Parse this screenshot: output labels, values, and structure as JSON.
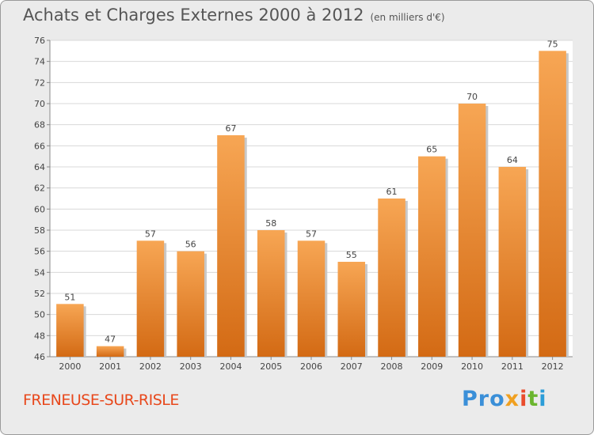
{
  "chart_data": {
    "type": "bar",
    "title": "Achats et Charges Externes 2000 à 2012",
    "subtitle": "(en milliers d'€)",
    "categories": [
      "2000",
      "2001",
      "2002",
      "2003",
      "2004",
      "2005",
      "2006",
      "2007",
      "2008",
      "2009",
      "2010",
      "2011",
      "2012"
    ],
    "values": [
      51,
      47,
      57,
      56,
      67,
      58,
      57,
      55,
      61,
      65,
      70,
      64,
      75
    ],
    "ylim": [
      46,
      76
    ],
    "yticks": [
      46,
      48,
      50,
      52,
      54,
      56,
      58,
      60,
      62,
      64,
      66,
      68,
      70,
      72,
      74,
      76
    ],
    "grid": true,
    "bar_color_top": "#f7a654",
    "bar_color_bottom": "#d36a14"
  },
  "footer": {
    "town": "FRENEUSE-SUR-RISLE",
    "logo": [
      "Pro",
      "x",
      "i",
      "t",
      "i"
    ]
  }
}
